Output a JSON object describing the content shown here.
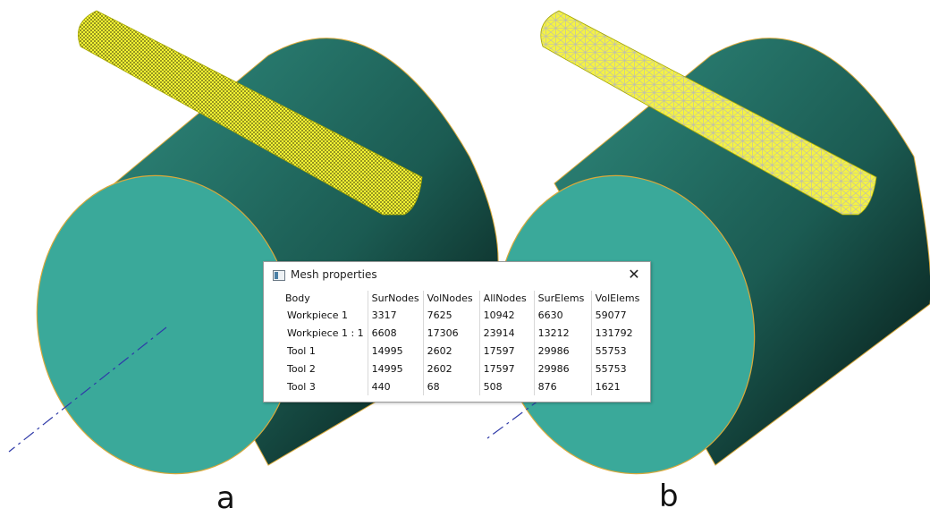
{
  "panels": [
    {
      "label": "a"
    },
    {
      "label": "b"
    }
  ],
  "colors": {
    "cylinder_face": "#3aa99a",
    "cylinder_body_light": "#2c7d72",
    "cylinder_body_dark": "#061a17",
    "mesh_tool": "#f2f233",
    "outline": "#d9a93a",
    "axis_line": "#2f3aa8"
  },
  "dialog": {
    "title": "Mesh properties",
    "close_icon": "close-icon",
    "columns": [
      "Body",
      "SurNodes",
      "VolNodes",
      "AllNodes",
      "SurElems",
      "VolElems"
    ],
    "rows": [
      [
        "Workpiece 1",
        "3317",
        "7625",
        "10942",
        "6630",
        "59077"
      ],
      [
        "Workpiece 1 : 1",
        "6608",
        "17306",
        "23914",
        "13212",
        "131792"
      ],
      [
        "Tool 1",
        "14995",
        "2602",
        "17597",
        "29986",
        "55753"
      ],
      [
        "Tool 2",
        "14995",
        "2602",
        "17597",
        "29986",
        "55753"
      ],
      [
        "Tool 3",
        "440",
        "68",
        "508",
        "876",
        "1621"
      ]
    ]
  }
}
